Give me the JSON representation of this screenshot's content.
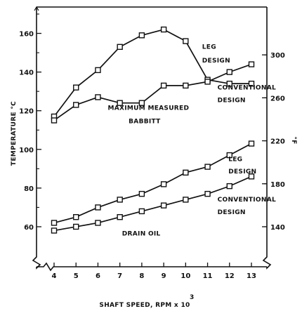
{
  "chart_data": {
    "type": "line",
    "xlabel": "SHAFT SPEED, RPM x 10",
    "xlabel_exponent": "3",
    "ylabel": "TEMPERATURE °C",
    "ylabel_right": "°F",
    "x": [
      4,
      5,
      6,
      7,
      8,
      9,
      10,
      11,
      12,
      13
    ],
    "xlim": [
      4,
      13
    ],
    "ylim": [
      52,
      170
    ],
    "yticks_left": [
      "60",
      "80",
      "100",
      "120",
      "140",
      "160"
    ],
    "yticks_right": [
      "140",
      "180",
      "220",
      "260",
      "300"
    ],
    "x_tick_labels": [
      "4",
      "5",
      "6",
      "7",
      "8",
      "9",
      "10",
      "11",
      "12",
      "13"
    ],
    "series": [
      {
        "group": "babbitt",
        "values": [
          117,
          132,
          141,
          153,
          159,
          162,
          156,
          136,
          134,
          134
        ]
      },
      {
        "group": "babbitt",
        "values": [
          115,
          123,
          127,
          124,
          124,
          133,
          133,
          135,
          140,
          144
        ]
      },
      {
        "group": "oil",
        "values": [
          62,
          65,
          70,
          74,
          77,
          82,
          88,
          91,
          97,
          103
        ]
      },
      {
        "group": "oil",
        "values": [
          58,
          60,
          62,
          65,
          68,
          71,
          74,
          77,
          81,
          86
        ]
      }
    ],
    "annotations": [
      {
        "text": "LEG",
        "x": 10.75,
        "y": 152
      },
      {
        "text": "DESIGN",
        "x": 10.75,
        "y": 145
      },
      {
        "text": "CONVENTIONAL",
        "x": 11.45,
        "y": 131
      },
      {
        "text": "DESIGN",
        "x": 11.45,
        "y": 124.5
      },
      {
        "text": "MAXIMUM  MEASURED",
        "x": 6.45,
        "y": 120.5
      },
      {
        "text": "BABBITT",
        "x": 7.4,
        "y": 113.5
      },
      {
        "text": "LEG",
        "x": 11.95,
        "y": 94
      },
      {
        "text": "DESIGN",
        "x": 11.95,
        "y": 87.5
      },
      {
        "text": "CONVENTIONAL",
        "x": 11.45,
        "y": 73
      },
      {
        "text": "DESIGN",
        "x": 11.45,
        "y": 66.5
      },
      {
        "text": "DRAIN  OIL",
        "x": 7.1,
        "y": 55.5
      }
    ],
    "grid": false,
    "legend": "none",
    "marker": "square",
    "colors": {
      "line": "#111111",
      "background": "#ffffff"
    }
  }
}
